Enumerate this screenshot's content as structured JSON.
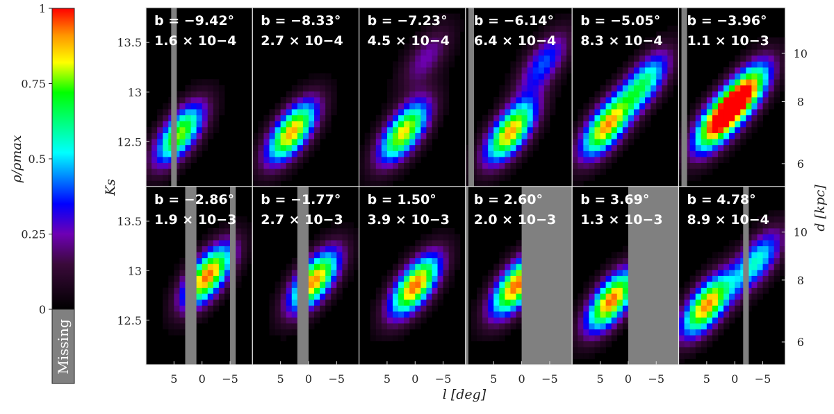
{
  "chart_data": {
    "type": "heatmap",
    "colorbar": {
      "label": "ρ/ρmax",
      "ticks": [
        "1",
        "0.75",
        "0.5",
        "0.25",
        "0"
      ],
      "tick_values": [
        1,
        0.75,
        0.5,
        0.25,
        0
      ],
      "missing_label": "Missing",
      "missing_color": "#808080"
    },
    "axes": {
      "xlabel": "l [deg]",
      "ylabel": "Ks",
      "ylabel_right": "d [kpc]",
      "x_ticks": [
        "5",
        "0",
        "−5"
      ],
      "x_tick_values": [
        5,
        0,
        -5
      ],
      "xlim": [
        10,
        -9
      ],
      "y_ticks": [
        "13.5",
        "13",
        "12.5"
      ],
      "y_tick_values": [
        13.5,
        13,
        12.5
      ],
      "ylim": [
        12.05,
        13.85
      ],
      "d_ticks": [
        "10",
        "8",
        "6"
      ],
      "d_tick_values": [
        10,
        8,
        6
      ]
    },
    "panels": [
      {
        "b": "b = −9.42°",
        "norm": "1.6 × 10−4",
        "peaks": [
          {
            "l": 4,
            "ks": 12.58,
            "w": 0.78
          }
        ]
      },
      {
        "b": "b = −8.33°",
        "norm": "2.7 × 10−4",
        "peaks": [
          {
            "l": 3,
            "ks": 12.6,
            "w": 0.9
          }
        ]
      },
      {
        "b": "b = −7.23°",
        "norm": "4.5 × 10−4",
        "peaks": [
          {
            "l": 2,
            "ks": 12.6,
            "w": 0.85
          },
          {
            "l": -2,
            "ks": 13.35,
            "w": 0.25
          }
        ]
      },
      {
        "b": "b = −6.14°",
        "norm": "6.4 × 10−4",
        "peaks": [
          {
            "l": 2,
            "ks": 12.6,
            "w": 0.9
          },
          {
            "l": -4,
            "ks": 13.3,
            "w": 0.4
          }
        ]
      },
      {
        "b": "b = −5.05°",
        "norm": "8.3 × 10−4",
        "peaks": [
          {
            "l": 4,
            "ks": 12.65,
            "w": 0.88
          },
          {
            "l": -3,
            "ks": 13.1,
            "w": 0.6
          }
        ]
      },
      {
        "b": "b = −3.96°",
        "norm": "1.1 × 10−3",
        "peaks": [
          {
            "l": 3,
            "ks": 12.7,
            "w": 0.95
          },
          {
            "l": -2,
            "ks": 13.0,
            "w": 0.88
          }
        ]
      },
      {
        "b": "b = −2.86°",
        "norm": "1.9 × 10−3",
        "peaks": [
          {
            "l": -1,
            "ks": 12.95,
            "w": 0.95
          }
        ]
      },
      {
        "b": "b = −1.77°",
        "norm": "2.7 × 10−3",
        "peaks": [
          {
            "l": -1,
            "ks": 12.9,
            "w": 0.92
          }
        ]
      },
      {
        "b": "b = 1.50°",
        "norm": "3.9 × 10−3",
        "peaks": [
          {
            "l": 0,
            "ks": 12.85,
            "w": 0.95
          }
        ]
      },
      {
        "b": "b = 2.60°",
        "norm": "2.0 × 10−3",
        "peaks": [
          {
            "l": 1,
            "ks": 12.85,
            "w": 0.95
          }
        ]
      },
      {
        "b": "b = 3.69°",
        "norm": "1.3 × 10−3",
        "peaks": [
          {
            "l": 3,
            "ks": 12.7,
            "w": 0.95
          }
        ]
      },
      {
        "b": "b = 4.78°",
        "norm": "8.9 × 10−4",
        "peaks": [
          {
            "l": 5,
            "ks": 12.65,
            "w": 0.92
          },
          {
            "l": -4,
            "ks": 13.1,
            "w": 0.55
          }
        ]
      }
    ],
    "missing_regions": [
      [
        [
          5.5,
          4.5
        ]
      ],
      [],
      [],
      [
        [
          9.5,
          8.5
        ]
      ],
      [],
      [
        [
          9.5,
          8.5
        ]
      ],
      [
        [
          3,
          1
        ],
        [
          -5,
          -6
        ]
      ],
      [
        [
          2,
          0
        ]
      ],
      [],
      [
        [
          10.5,
          9.5
        ],
        [
          0,
          -9
        ]
      ],
      [
        [
          0,
          -9
        ]
      ],
      [
        [
          -1.5,
          -2.5
        ]
      ]
    ]
  }
}
